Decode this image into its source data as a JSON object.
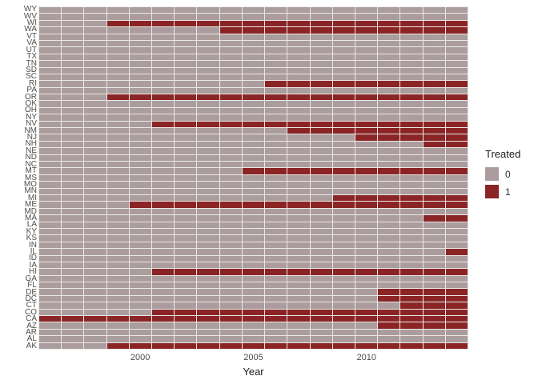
{
  "chart_data": {
    "type": "heatmap",
    "title": "",
    "xlabel": "Year",
    "ylabel": "",
    "x_range": [
      1996,
      2014
    ],
    "x_ticks": [
      "2000",
      "2005",
      "2010"
    ],
    "grid_line_color": "#ECE8E8",
    "legend": {
      "title": "Treated",
      "position": "right",
      "items": [
        {
          "label": "0",
          "color": "#AB9D9D"
        },
        {
          "label": "1",
          "color": "#8B2525"
        }
      ]
    },
    "rows": [
      {
        "state": "WY",
        "treated_from": null
      },
      {
        "state": "WV",
        "treated_from": null
      },
      {
        "state": "WI",
        "treated_from": 1999
      },
      {
        "state": "WA",
        "treated_from": 2004
      },
      {
        "state": "VT",
        "treated_from": null
      },
      {
        "state": "VA",
        "treated_from": null
      },
      {
        "state": "UT",
        "treated_from": null
      },
      {
        "state": "TX",
        "treated_from": null
      },
      {
        "state": "TN",
        "treated_from": null
      },
      {
        "state": "SD",
        "treated_from": null
      },
      {
        "state": "SC",
        "treated_from": null
      },
      {
        "state": "RI",
        "treated_from": 2006
      },
      {
        "state": "PA",
        "treated_from": null
      },
      {
        "state": "OR",
        "treated_from": 1999
      },
      {
        "state": "OK",
        "treated_from": null
      },
      {
        "state": "OH",
        "treated_from": null
      },
      {
        "state": "NY",
        "treated_from": null
      },
      {
        "state": "NV",
        "treated_from": 2001
      },
      {
        "state": "NM",
        "treated_from": 2007
      },
      {
        "state": "NJ",
        "treated_from": 2010
      },
      {
        "state": "NH",
        "treated_from": 2013
      },
      {
        "state": "NE",
        "treated_from": null
      },
      {
        "state": "ND",
        "treated_from": null
      },
      {
        "state": "NC",
        "treated_from": null
      },
      {
        "state": "MT",
        "treated_from": 2005
      },
      {
        "state": "MS",
        "treated_from": null
      },
      {
        "state": "MO",
        "treated_from": null
      },
      {
        "state": "MN",
        "treated_from": null
      },
      {
        "state": "MI",
        "treated_from": 2009
      },
      {
        "state": "ME",
        "treated_from": 2000
      },
      {
        "state": "MD",
        "treated_from": null
      },
      {
        "state": "MA",
        "treated_from": 2013
      },
      {
        "state": "LA",
        "treated_from": null
      },
      {
        "state": "KY",
        "treated_from": null
      },
      {
        "state": "KS",
        "treated_from": null
      },
      {
        "state": "IN",
        "treated_from": null
      },
      {
        "state": "IL",
        "treated_from": 2014
      },
      {
        "state": "ID",
        "treated_from": null
      },
      {
        "state": "IA",
        "treated_from": null
      },
      {
        "state": "HI",
        "treated_from": 2001
      },
      {
        "state": "GA",
        "treated_from": null
      },
      {
        "state": "FL",
        "treated_from": null
      },
      {
        "state": "DE",
        "treated_from": 2011
      },
      {
        "state": "DC",
        "treated_from": 2011
      },
      {
        "state": "CT",
        "treated_from": 2012
      },
      {
        "state": "CO",
        "treated_from": 2001
      },
      {
        "state": "CA",
        "treated_from": 1996
      },
      {
        "state": "AZ",
        "treated_from": 2011
      },
      {
        "state": "AR",
        "treated_from": null
      },
      {
        "state": "AL",
        "treated_from": null
      },
      {
        "state": "AK",
        "treated_from": 1999
      }
    ]
  }
}
